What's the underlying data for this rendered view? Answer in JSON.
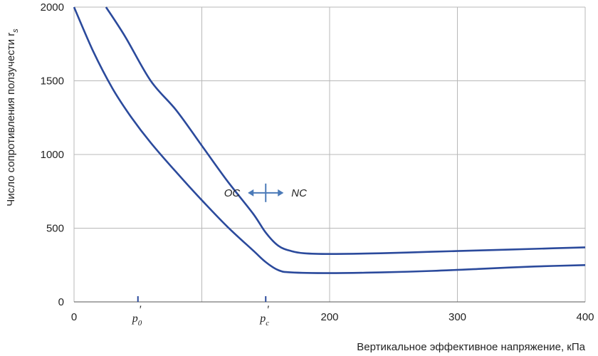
{
  "chart_data": {
    "type": "line",
    "xlabel": "Вертикальное эффективное напряжение, кПа",
    "ylabel": "Число сопротивления ползучести r",
    "ylabel_sub": "s",
    "xlim": [
      0,
      400
    ],
    "ylim": [
      0,
      2000
    ],
    "x_ticks": [
      0,
      200,
      300,
      400
    ],
    "x_tick_labels": [
      "0",
      "200",
      "300",
      "400"
    ],
    "x_grid": [
      0,
      100,
      200,
      300,
      400
    ],
    "y_ticks": [
      0,
      500,
      1000,
      1500,
      2000
    ],
    "y_tick_labels": [
      "0",
      "500",
      "1000",
      "1500",
      "2000"
    ],
    "grid": true,
    "series": [
      {
        "x": [
          25,
          40,
          60,
          80,
          100,
          120,
          140,
          150,
          160,
          170,
          180,
          200,
          240,
          280,
          320,
          360,
          400
        ],
        "y": [
          2000,
          1800,
          1500,
          1300,
          1060,
          820,
          600,
          470,
          380,
          345,
          330,
          325,
          330,
          340,
          350,
          360,
          370
        ]
      },
      {
        "x": [
          0,
          15,
          30,
          45,
          60,
          80,
          100,
          120,
          140,
          150,
          160,
          170,
          200,
          240,
          280,
          320,
          360,
          400
        ],
        "y": [
          2000,
          1700,
          1450,
          1250,
          1080,
          880,
          690,
          510,
          350,
          270,
          215,
          200,
          195,
          200,
          210,
          225,
          240,
          250
        ]
      }
    ],
    "color": "#2b4a9c",
    "markers": [
      {
        "x": 50,
        "label": "p",
        "sub": "0",
        "prime": "'"
      },
      {
        "x": 150,
        "label": "p",
        "sub": "c",
        "prime": "'"
      }
    ],
    "annotation": {
      "x": 150,
      "y": 740,
      "left": "OC",
      "right": "NC"
    }
  }
}
